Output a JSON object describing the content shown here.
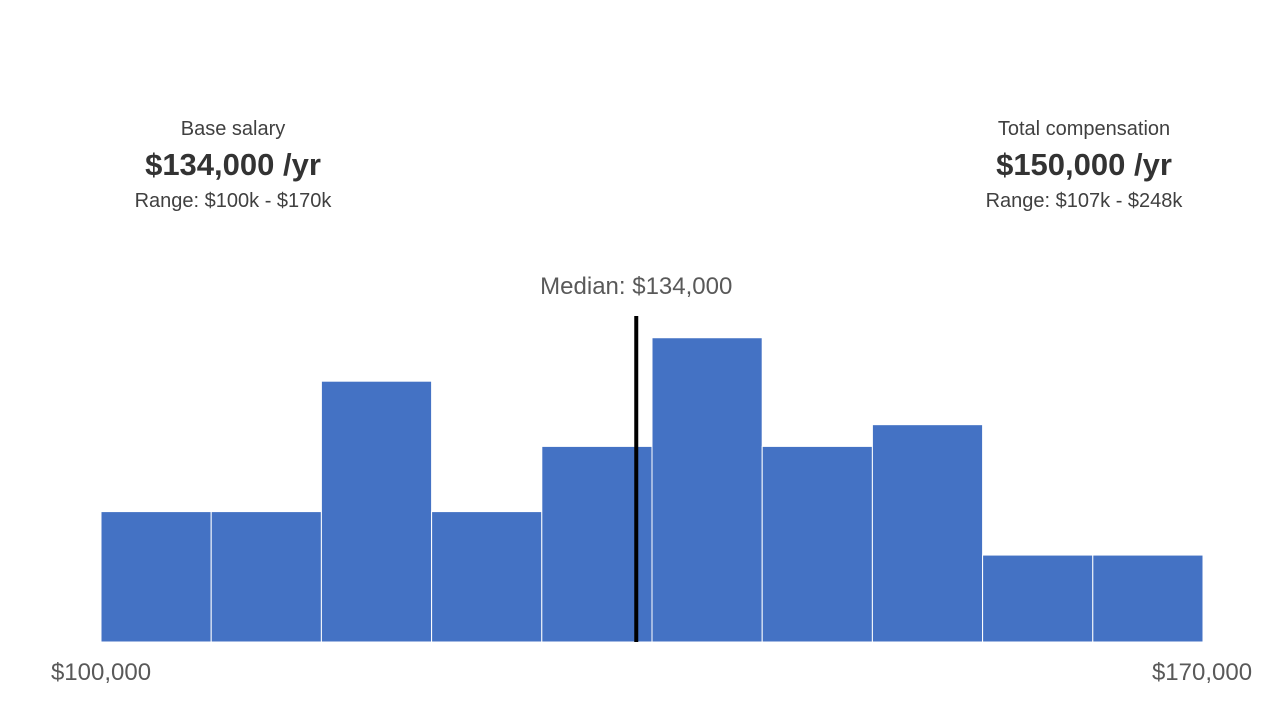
{
  "base": {
    "label": "Base salary",
    "value": "$134,000 /yr",
    "range": "Range: $100k - $170k"
  },
  "total": {
    "label": "Total compensation",
    "value": "$150,000 /yr",
    "range": "Range: $107k - $248k"
  },
  "chart_data": {
    "type": "bar",
    "x_range": [
      100000,
      170000
    ],
    "bin_edges": [
      100000,
      107000,
      114000,
      121000,
      128000,
      135000,
      142000,
      149000,
      156000,
      163000,
      170000
    ],
    "values": [
      3,
      3,
      6,
      3,
      4.5,
      7,
      4.5,
      5,
      2,
      2
    ],
    "ylim": [
      0,
      7.5
    ],
    "median": 134000,
    "median_label": "Median: $134,000",
    "x_tick_labels": [
      "$100,000",
      "$170,000"
    ],
    "bar_color": "#4472c4",
    "median_color": "#000000"
  }
}
